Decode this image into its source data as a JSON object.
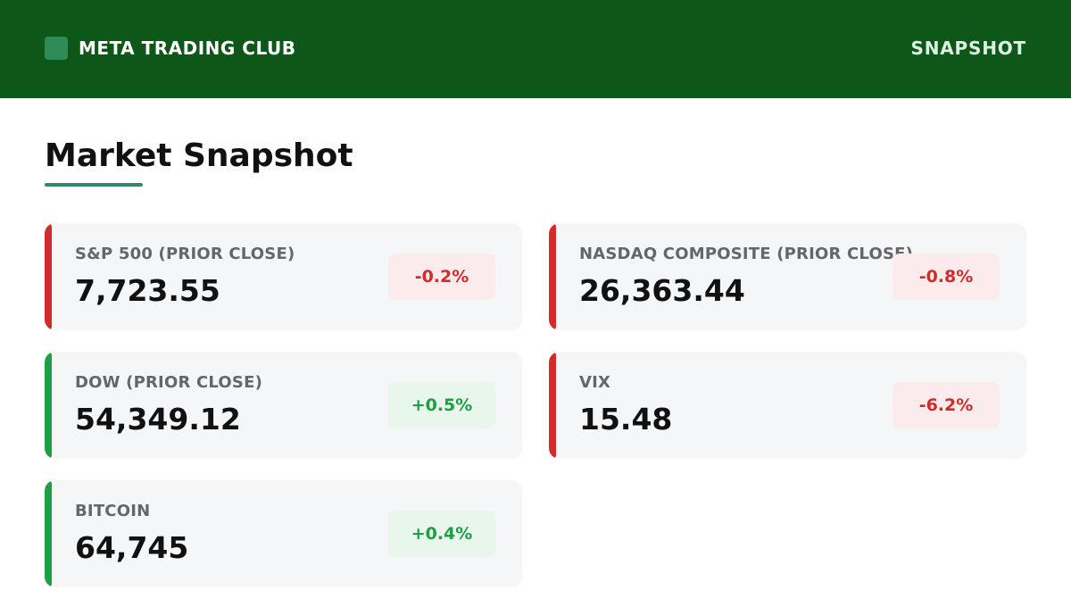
{
  "header": {
    "brand": "META TRADING CLUB",
    "right_label": "SNAPSHOT",
    "logo_color": "#2e8b57",
    "bar_color": "#0d5719"
  },
  "page": {
    "title": "Market Snapshot",
    "accent_color": "#2e8b6a"
  },
  "colors": {
    "negative": "#d22b2b",
    "positive": "#1e9e45"
  },
  "cards": [
    {
      "label": "S&P 500 (PRIOR CLOSE)",
      "value": "7,723.55",
      "change": "-0.2%",
      "direction": "negative"
    },
    {
      "label": "NASDAQ COMPOSITE (PRIOR CLOSE)",
      "value": "26,363.44",
      "change": "-0.8%",
      "direction": "negative"
    },
    {
      "label": "DOW (PRIOR CLOSE)",
      "value": "54,349.12",
      "change": "+0.5%",
      "direction": "positive"
    },
    {
      "label": "VIX",
      "value": "15.48",
      "change": "-6.2%",
      "direction": "negative"
    },
    {
      "label": "BITCOIN",
      "value": "64,745",
      "change": "+0.4%",
      "direction": "positive"
    }
  ]
}
